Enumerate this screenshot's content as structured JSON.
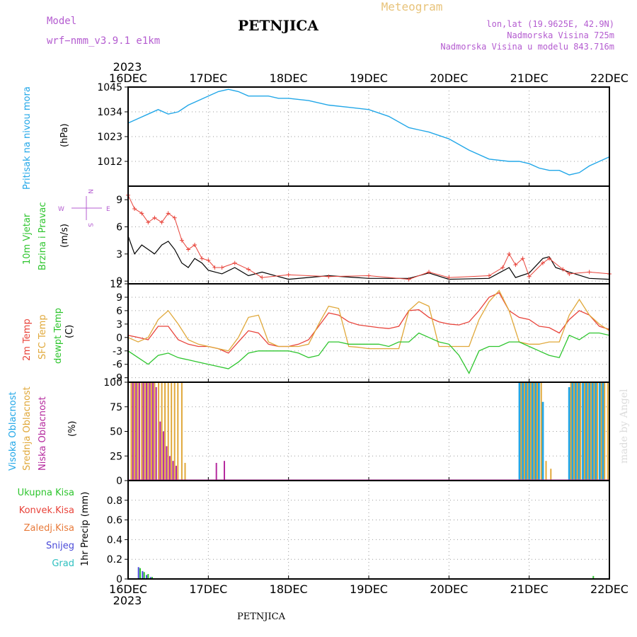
{
  "header": {
    "meteogram_label": "Meteogram",
    "title": "PETNJICA",
    "model_label": "Model",
    "model_name": "wrf−nmm_v3.9.1  e1km",
    "lonlat": "lon,lat (19.9625E, 42.9N)",
    "elevation": "Nadmorska Visina 725m",
    "model_elevation": "Nadmorska Visina u modelu 843.716m",
    "credit": "made by Angel",
    "bottom_title": "PETNJICA"
  },
  "colors": {
    "pressure": "#22a7e8",
    "temp2m": "#e8433a",
    "sfc": "#e0a83a",
    "dew": "#2ec52e",
    "high_cloud": "#22a7e8",
    "mid_cloud": "#e0a83a",
    "low_cloud": "#b52a9e",
    "header_purple": "#b45cd0",
    "meteogram_orange": "#e8c37a"
  },
  "x_axis": {
    "year_label": "2023",
    "dates": [
      "16DEC",
      "17DEC",
      "18DEC",
      "19DEC",
      "20DEC",
      "21DEC",
      "22DEC"
    ]
  },
  "compass": {
    "n": "N",
    "s": "S",
    "w": "W",
    "e": "E"
  },
  "chart_data": [
    {
      "type": "line",
      "name": "pressure",
      "ylabel_main": "Pritisak na nivou mora",
      "unit": "(hPa)",
      "ylim": [
        1001,
        1045
      ],
      "yticks": [
        1012,
        1023,
        1034,
        1045
      ],
      "x": [
        0,
        0.125,
        0.25,
        0.375,
        0.5,
        0.625,
        0.75,
        0.875,
        1.0,
        1.125,
        1.25,
        1.375,
        1.5,
        1.625,
        1.75,
        1.875,
        2.0,
        2.25,
        2.5,
        2.75,
        3.0,
        3.25,
        3.5,
        3.625,
        3.75,
        4.0,
        4.25,
        4.5,
        4.75,
        4.875,
        5.0,
        5.125,
        5.25,
        5.375,
        5.5,
        5.625,
        5.75,
        5.875,
        6.0
      ],
      "values": [
        1029,
        1031,
        1033,
        1035,
        1033,
        1034,
        1037,
        1039,
        1041,
        1043,
        1044,
        1043,
        1041,
        1041,
        1041,
        1040,
        1040,
        1039,
        1037,
        1036,
        1035,
        1032,
        1027,
        1026,
        1025,
        1022,
        1017,
        1013,
        1012,
        1012,
        1011,
        1009,
        1008,
        1008,
        1006,
        1007,
        1010,
        1012,
        1014
      ]
    },
    {
      "type": "line",
      "name": "wind",
      "ylabel_main": "10m Vjetar",
      "ylabel_sub": "Brzina i Pravac",
      "unit": "(m/s)",
      "ylim": [
        -0.3,
        10.5
      ],
      "yticks": [
        0,
        3,
        6,
        9
      ],
      "x": [
        0,
        0.08,
        0.17,
        0.25,
        0.33,
        0.42,
        0.5,
        0.58,
        0.67,
        0.75,
        0.83,
        0.92,
        1.0,
        1.17,
        1.33,
        1.5,
        1.67,
        2.0,
        2.5,
        3.0,
        3.5,
        3.75,
        4.0,
        4.5,
        4.75,
        4.83,
        5.0,
        5.17,
        5.25,
        5.33,
        5.5,
        5.75,
        6.0
      ],
      "values": [
        5,
        3,
        4,
        3.5,
        3,
        4,
        4.4,
        3.5,
        2,
        1.5,
        2.5,
        2,
        1.2,
        0.8,
        1.5,
        0.6,
        1.0,
        0.2,
        0.6,
        0.3,
        0.3,
        0.9,
        0.2,
        0.3,
        1.5,
        0.4,
        0.9,
        2.5,
        2.7,
        1.5,
        1.0,
        0.3,
        0.2
      ],
      "gust_x": [
        0,
        0.08,
        0.17,
        0.25,
        0.33,
        0.42,
        0.5,
        0.58,
        0.67,
        0.75,
        0.83,
        0.92,
        1.0,
        1.08,
        1.17,
        1.33,
        1.5,
        1.67,
        2.0,
        2.5,
        3.0,
        3.5,
        3.75,
        4.0,
        4.5,
        4.67,
        4.75,
        4.83,
        4.92,
        5.0,
        5.17,
        5.25,
        5.42,
        5.5,
        5.75,
        6.0
      ],
      "gust_values": [
        9.5,
        8,
        7.5,
        6.5,
        7,
        6.5,
        7.5,
        7,
        4.5,
        3.5,
        4,
        2.5,
        2.3,
        1.5,
        1.5,
        2.0,
        1.3,
        0.4,
        0.7,
        0.5,
        0.6,
        0.2,
        1.0,
        0.4,
        0.6,
        1.5,
        3.0,
        1.8,
        2.5,
        0.5,
        2.0,
        2.5,
        1.3,
        0.8,
        1.0,
        0.8
      ]
    },
    {
      "type": "line",
      "name": "temperature",
      "ylabel_2m": "2m Temp",
      "ylabel_sfc": "SFC Temp",
      "ylabel_dew": "dewpt Temp",
      "unit": "(C)",
      "ylim": [
        -10,
        12
      ],
      "yticks": [
        -9,
        -6,
        -3,
        0,
        3,
        6,
        9,
        12
      ],
      "x": [
        0,
        0.125,
        0.25,
        0.375,
        0.5,
        0.625,
        0.75,
        0.875,
        1.0,
        1.125,
        1.25,
        1.375,
        1.5,
        1.625,
        1.75,
        1.875,
        2.0,
        2.125,
        2.25,
        2.375,
        2.5,
        2.625,
        2.75,
        2.875,
        3.0,
        3.125,
        3.25,
        3.375,
        3.5,
        3.625,
        3.75,
        3.875,
        4.0,
        4.125,
        4.25,
        4.375,
        4.5,
        4.625,
        4.75,
        4.875,
        5.0,
        5.125,
        5.25,
        5.375,
        5.5,
        5.625,
        5.75,
        5.875,
        6.0
      ],
      "series": [
        {
          "name": "2m Temp",
          "values": [
            0.5,
            0,
            -0.5,
            2.5,
            2.5,
            -0.5,
            -1.5,
            -2,
            -2,
            -2.5,
            -3.5,
            -1,
            1.5,
            1,
            -1.5,
            -2,
            -2,
            -1.5,
            -0.5,
            2.5,
            5.5,
            5,
            3.5,
            2.8,
            2.5,
            2.2,
            2,
            2.5,
            6,
            6.2,
            4.5,
            3.5,
            3,
            2.8,
            3.5,
            6,
            9,
            10,
            6,
            4.5,
            4,
            2.5,
            2.2,
            1,
            4,
            6,
            5,
            2.5,
            1.8
          ]
        },
        {
          "name": "SFC Temp",
          "values": [
            0,
            -1,
            0,
            4,
            6,
            3,
            -0.5,
            -1.5,
            -2,
            -2.5,
            -3,
            0,
            4.5,
            5,
            -1,
            -2,
            -2,
            -2,
            -1.5,
            3,
            7,
            6.5,
            -2,
            -2.2,
            -2.5,
            -2.5,
            -2.5,
            -2.5,
            6,
            8,
            7,
            -2,
            -2,
            -2,
            -2,
            4,
            8,
            10.5,
            6,
            -1,
            -1.5,
            -1.5,
            -1,
            -1,
            5,
            8.5,
            5,
            3,
            1.5
          ]
        },
        {
          "name": "dewpt Temp",
          "values": [
            -3,
            -4.5,
            -6,
            -4,
            -3.5,
            -4.5,
            -5,
            -5.5,
            -6,
            -6.5,
            -7,
            -5.5,
            -3.5,
            -3,
            -3,
            -3,
            -3,
            -3.5,
            -4.5,
            -4,
            -1,
            -1,
            -1.5,
            -1.5,
            -1.5,
            -1.5,
            -2,
            -1,
            -1,
            1,
            0,
            -1,
            -1.5,
            -4,
            -8,
            -3,
            -2,
            -2,
            -1,
            -1,
            -2,
            -3,
            -4,
            -4.5,
            0.5,
            -0.5,
            1,
            1,
            0.5
          ]
        }
      ]
    },
    {
      "type": "bar",
      "name": "cloud",
      "ylabel_high": "Visoka Oblacnost",
      "ylabel_mid": "Srednja Oblacnost",
      "ylabel_low": "Niska Oblacnost",
      "unit": "(%)",
      "ylim": [
        0,
        100
      ],
      "yticks": [
        0,
        25,
        50,
        75,
        100
      ],
      "series": [
        {
          "name": "Visoka Oblacnost",
          "x": [
            4.88,
            4.92,
            4.96,
            5.0,
            5.04,
            5.08,
            5.12,
            5.17,
            5.5,
            5.54,
            5.58,
            5.62,
            5.67,
            5.71,
            5.75,
            5.79,
            5.83,
            5.88,
            5.92
          ],
          "values": [
            100,
            100,
            100,
            100,
            100,
            100,
            100,
            80,
            95,
            100,
            100,
            100,
            100,
            100,
            100,
            100,
            100,
            100,
            100
          ]
        },
        {
          "name": "Srednja Oblacnost",
          "x": [
            0.04,
            0.08,
            0.12,
            0.17,
            0.21,
            0.25,
            0.29,
            0.33,
            0.38,
            0.42,
            0.46,
            0.5,
            0.54,
            0.58,
            0.62,
            0.67,
            0.71,
            4.9,
            4.94,
            4.98,
            5.02,
            5.06,
            5.1,
            5.15,
            5.21,
            5.27,
            5.52,
            5.56,
            5.6,
            5.64,
            5.69,
            5.73,
            5.77,
            5.81,
            5.85,
            5.9,
            5.94,
            5.98
          ],
          "values": [
            100,
            100,
            100,
            100,
            100,
            100,
            100,
            100,
            100,
            100,
            100,
            100,
            100,
            100,
            100,
            100,
            18,
            100,
            100,
            100,
            100,
            100,
            100,
            100,
            20,
            12,
            100,
            100,
            100,
            100,
            100,
            100,
            100,
            100,
            100,
            100,
            100,
            100
          ]
        },
        {
          "name": "Niska Oblacnost",
          "x": [
            0.06,
            0.1,
            0.14,
            0.19,
            0.23,
            0.27,
            0.31,
            0.35,
            0.4,
            0.44,
            0.48,
            0.52,
            0.56,
            0.6,
            1.1,
            1.2
          ],
          "values": [
            100,
            100,
            100,
            100,
            100,
            100,
            100,
            95,
            60,
            50,
            35,
            25,
            20,
            15,
            18,
            20
          ]
        }
      ]
    },
    {
      "type": "bar",
      "name": "precip",
      "ylabel_main": "1hr Precip (mm)",
      "legend": [
        "Ukupna Kisa",
        "Konvek.Kisa",
        "Zaledj.Kisa",
        "Snijeg",
        "Grad"
      ],
      "ylim": [
        0,
        1.0
      ],
      "yticks": [
        0,
        0.2,
        0.4,
        0.6,
        0.8
      ],
      "series": [
        {
          "name": "Ukupna Kisa",
          "x": [
            0.15,
            0.2,
            0.25,
            0.3,
            5.8
          ],
          "values": [
            0.11,
            0.07,
            0.05,
            0.02,
            0.03
          ]
        },
        {
          "name": "Snijeg",
          "x": [
            0.13,
            0.18,
            0.23,
            0.28
          ],
          "values": [
            0.12,
            0.08,
            0.04,
            0.02
          ]
        }
      ]
    }
  ]
}
